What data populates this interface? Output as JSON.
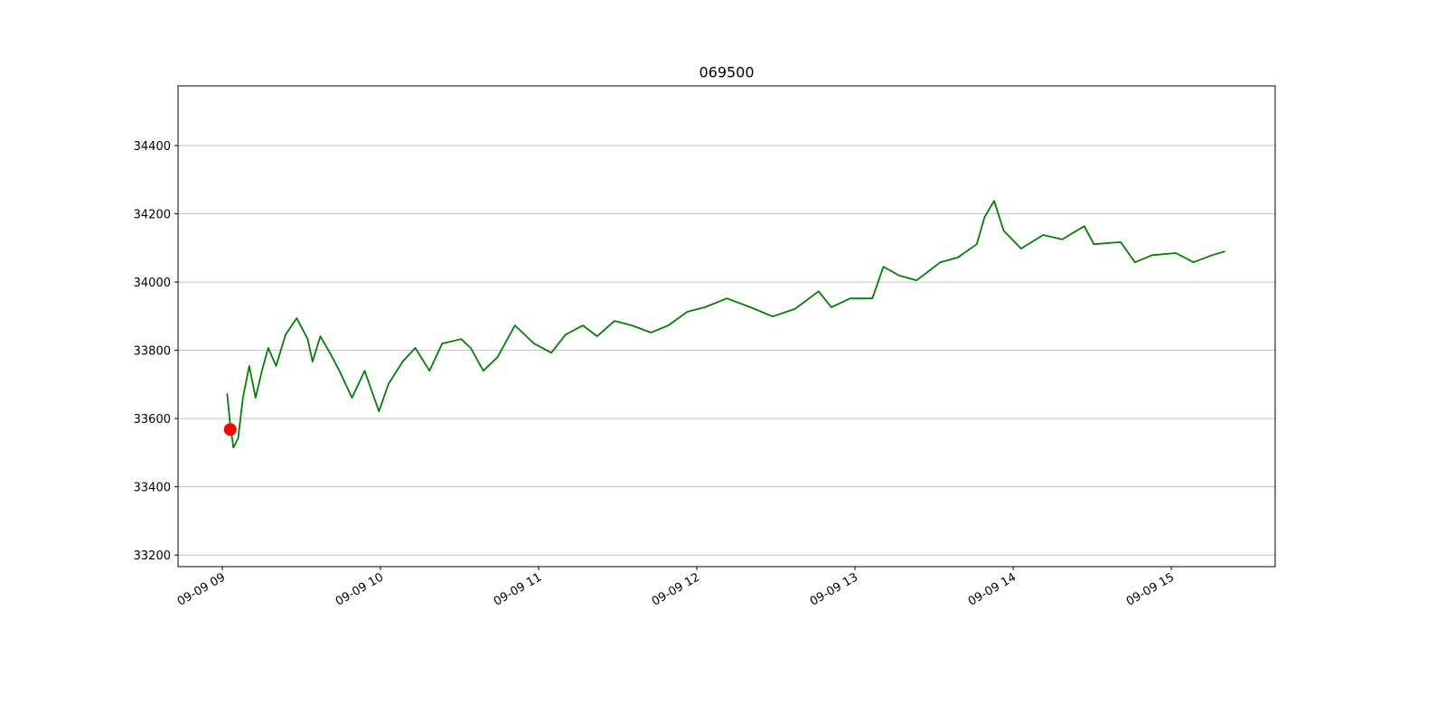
{
  "chart_data": {
    "type": "line",
    "title": "069500",
    "x": [
      9.03,
      9.05,
      9.07,
      9.1,
      9.13,
      9.17,
      9.21,
      9.25,
      9.29,
      9.34,
      9.4,
      9.47,
      9.54,
      9.57,
      9.62,
      9.68,
      9.74,
      9.82,
      9.9,
      9.99,
      10.05,
      10.14,
      10.22,
      10.31,
      10.39,
      10.51,
      10.57,
      10.65,
      10.74,
      10.85,
      10.97,
      11.08,
      11.17,
      11.28,
      11.37,
      11.48,
      11.59,
      11.71,
      11.82,
      11.94,
      12.05,
      12.19,
      12.34,
      12.48,
      12.62,
      12.77,
      12.85,
      12.97,
      13.11,
      13.18,
      13.28,
      13.39,
      13.54,
      13.65,
      13.77,
      13.82,
      13.88,
      13.94,
      14.05,
      14.19,
      14.31,
      14.45,
      14.51,
      14.68,
      14.77,
      14.88,
      15.03,
      15.14,
      15.26,
      15.34
    ],
    "values": [
      33674,
      33581,
      33515,
      33542,
      33661,
      33754,
      33661,
      33740,
      33807,
      33754,
      33846,
      33894,
      33833,
      33767,
      33841,
      33793,
      33740,
      33661,
      33740,
      33621,
      33701,
      33767,
      33807,
      33740,
      33820,
      33833,
      33807,
      33740,
      33780,
      33873,
      33820,
      33793,
      33846,
      33873,
      33841,
      33886,
      33873,
      33852,
      33873,
      33913,
      33926,
      33952,
      33926,
      33899,
      33921,
      33973,
      33926,
      33952,
      33952,
      34045,
      34019,
      34005,
      34058,
      34072,
      34111,
      34191,
      34238,
      34151,
      34098,
      34138,
      34125,
      34164,
      34111,
      34117,
      34058,
      34079,
      34085,
      34058,
      34079,
      34090
    ],
    "color": "#007f00",
    "marker": {
      "x": 9.05,
      "y": 33568,
      "color": "#ff0000"
    },
    "xlim": [
      8.72,
      15.657
    ],
    "ylim": [
      33166,
      34575
    ],
    "xticks": [
      {
        "value": 9,
        "label": "09-09 09"
      },
      {
        "value": 10,
        "label": "09-09 10"
      },
      {
        "value": 11,
        "label": "09-09 11"
      },
      {
        "value": 12,
        "label": "09-09 12"
      },
      {
        "value": 13,
        "label": "09-09 13"
      },
      {
        "value": 14,
        "label": "09-09 14"
      },
      {
        "value": 15,
        "label": "09-09 15"
      }
    ],
    "yticks": [
      33200,
      33400,
      33600,
      33800,
      34000,
      34200,
      34400
    ],
    "grid": true
  }
}
